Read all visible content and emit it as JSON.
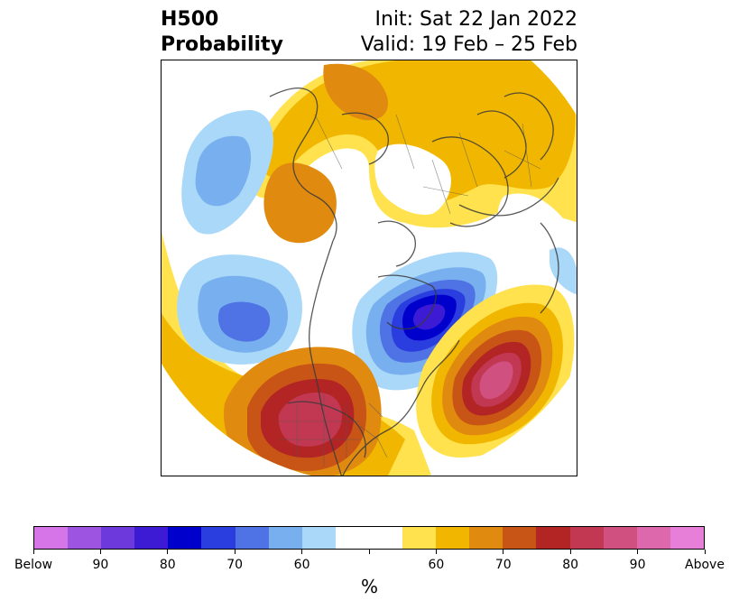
{
  "title": {
    "left_line1": "H500",
    "left_line2": "Probability",
    "right_line1": "Init: Sat 22 Jan 2022",
    "right_line2": "Valid: 19 Feb – 25 Feb"
  },
  "colorbar": {
    "unit": "%",
    "colors": [
      "#d675e8",
      "#9d55e1",
      "#6e39dc",
      "#3d1ad4",
      "#0000cc",
      "#2a3dde",
      "#4f72e4",
      "#78afef",
      "#aad8f8",
      "#ffffff",
      "#ffffff",
      "#ffe24e",
      "#f1b700",
      "#e08a10",
      "#c85515",
      "#b32424",
      "#c23852",
      "#d0507f",
      "#dd68ac",
      "#e77ed8"
    ],
    "tick_labels": [
      "Below",
      "90",
      "80",
      "70",
      "60",
      "",
      "60",
      "70",
      "80",
      "90",
      "Above"
    ]
  },
  "map": {
    "projection": "polar stereographic (north pole)",
    "regions": [
      {
        "name": "east-pacific-high",
        "type": "above",
        "peak": 90
      },
      {
        "name": "atlantic-high",
        "type": "above",
        "peak": 90
      },
      {
        "name": "arctic-high",
        "type": "above",
        "peak": 70
      },
      {
        "name": "canada-low",
        "type": "below",
        "peak": 85
      },
      {
        "name": "north-pacific-low",
        "type": "below",
        "peak": 70
      },
      {
        "name": "bering-low",
        "type": "below",
        "peak": 70
      }
    ]
  }
}
